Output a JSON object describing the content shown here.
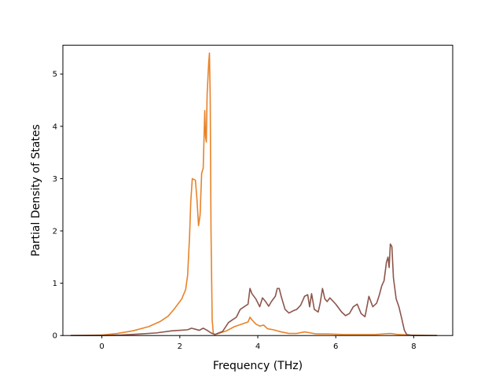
{
  "chart_data": {
    "type": "line",
    "title": "",
    "xlabel": "Frequency (THz)",
    "ylabel": "Partial Density of States",
    "xlim": [
      -1.0,
      9.0
    ],
    "ylim": [
      0,
      5.55
    ],
    "xticks": [
      0,
      2,
      4,
      6,
      8
    ],
    "yticks": [
      0,
      1,
      2,
      3,
      4,
      5
    ],
    "grid": false,
    "legend": "none",
    "series": [
      {
        "color": "#e8832a",
        "x": [
          -0.8,
          0.0,
          0.4,
          0.8,
          1.2,
          1.5,
          1.7,
          1.85,
          1.95,
          2.05,
          2.15,
          2.2,
          2.25,
          2.28,
          2.32,
          2.4,
          2.44,
          2.48,
          2.52,
          2.56,
          2.6,
          2.64,
          2.66,
          2.68,
          2.7,
          2.72,
          2.74,
          2.76,
          2.78,
          2.8,
          2.83,
          2.86,
          2.9,
          3.0,
          3.2,
          3.4,
          3.6,
          3.75,
          3.8,
          3.85,
          3.95,
          4.05,
          4.15,
          4.25,
          4.4,
          4.5,
          4.6,
          4.8,
          5.0,
          5.2,
          5.35,
          5.5,
          5.8,
          6.2,
          6.6,
          7.0,
          7.4,
          7.6,
          7.9,
          8.6
        ],
        "y": [
          0.0,
          0.01,
          0.04,
          0.09,
          0.17,
          0.27,
          0.37,
          0.5,
          0.6,
          0.7,
          0.88,
          1.15,
          1.9,
          2.55,
          3.0,
          2.97,
          2.6,
          2.1,
          2.3,
          3.1,
          3.2,
          4.3,
          3.8,
          3.7,
          4.6,
          4.9,
          5.2,
          5.4,
          4.5,
          2.0,
          0.3,
          0.03,
          0.02,
          0.04,
          0.09,
          0.17,
          0.22,
          0.26,
          0.35,
          0.3,
          0.22,
          0.18,
          0.2,
          0.13,
          0.11,
          0.09,
          0.07,
          0.04,
          0.04,
          0.07,
          0.05,
          0.03,
          0.03,
          0.02,
          0.02,
          0.02,
          0.04,
          0.02,
          0.01,
          0.0
        ]
      },
      {
        "color": "#8c564b",
        "x": [
          -0.8,
          0.0,
          0.5,
          1.0,
          1.4,
          1.8,
          2.0,
          2.2,
          2.3,
          2.4,
          2.5,
          2.6,
          2.65,
          2.7,
          2.8,
          2.9,
          3.1,
          3.25,
          3.35,
          3.45,
          3.55,
          3.65,
          3.75,
          3.8,
          3.85,
          3.95,
          4.05,
          4.12,
          4.2,
          4.28,
          4.35,
          4.45,
          4.5,
          4.55,
          4.6,
          4.7,
          4.8,
          4.9,
          5.0,
          5.1,
          5.2,
          5.28,
          5.33,
          5.38,
          5.45,
          5.55,
          5.6,
          5.66,
          5.72,
          5.78,
          5.85,
          6.0,
          6.15,
          6.25,
          6.35,
          6.45,
          6.55,
          6.65,
          6.75,
          6.8,
          6.85,
          6.95,
          7.05,
          7.12,
          7.18,
          7.24,
          7.3,
          7.34,
          7.37,
          7.4,
          7.44,
          7.48,
          7.55,
          7.62,
          7.7,
          7.76,
          7.82,
          7.9,
          8.0,
          8.6
        ],
        "y": [
          0.0,
          0.0,
          0.01,
          0.03,
          0.05,
          0.09,
          0.1,
          0.11,
          0.14,
          0.12,
          0.1,
          0.14,
          0.12,
          0.1,
          0.05,
          0.02,
          0.08,
          0.25,
          0.3,
          0.35,
          0.5,
          0.55,
          0.6,
          0.9,
          0.8,
          0.7,
          0.55,
          0.72,
          0.65,
          0.56,
          0.65,
          0.75,
          0.9,
          0.9,
          0.75,
          0.5,
          0.43,
          0.47,
          0.5,
          0.58,
          0.75,
          0.78,
          0.55,
          0.8,
          0.5,
          0.45,
          0.62,
          0.9,
          0.7,
          0.65,
          0.72,
          0.6,
          0.45,
          0.38,
          0.42,
          0.55,
          0.6,
          0.42,
          0.36,
          0.55,
          0.75,
          0.55,
          0.62,
          0.78,
          0.95,
          1.05,
          1.4,
          1.5,
          1.3,
          1.75,
          1.7,
          1.1,
          0.7,
          0.55,
          0.3,
          0.1,
          0.02,
          0.01,
          0.0,
          0.0
        ]
      }
    ]
  }
}
